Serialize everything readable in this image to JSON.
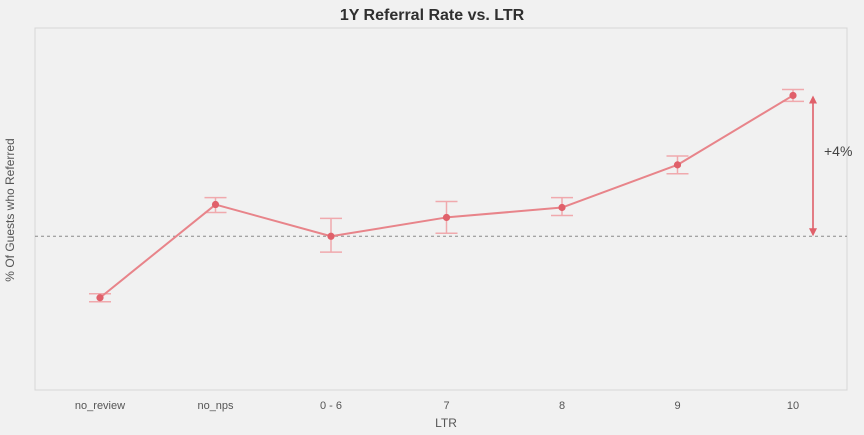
{
  "colors": {
    "background": "#f1f1f1",
    "plot_border": "#d6d6d6",
    "series": "#e8848a",
    "error_bar": "#f0a9ad",
    "reference_line": "#8a8a8a",
    "annotation_arrow": "#e0606a"
  },
  "chart_data": {
    "type": "line",
    "title": "1Y Referral Rate vs. LTR",
    "xlabel": "LTR",
    "ylabel": "% Of Guests who Referred",
    "categories": [
      "no_review",
      "no_nps",
      "0 - 6",
      "7",
      "8",
      "9",
      "10"
    ],
    "series": [
      {
        "values": [
          -0.62,
          0.32,
          0.0,
          0.19,
          0.29,
          0.72,
          1.42
        ],
        "error_low": [
          -0.66,
          0.24,
          -0.16,
          0.03,
          0.21,
          0.63,
          1.36
        ],
        "error_high": [
          -0.58,
          0.39,
          0.18,
          0.35,
          0.39,
          0.81,
          1.48
        ]
      }
    ],
    "ylim": [
      -1.55,
      2.1
    ],
    "reference_line": {
      "y": 0.0,
      "style": "dashed"
    },
    "annotation": {
      "text": "+4%",
      "from_y": 0.0,
      "to_y": 1.42
    },
    "grid": false,
    "legend": "none"
  }
}
